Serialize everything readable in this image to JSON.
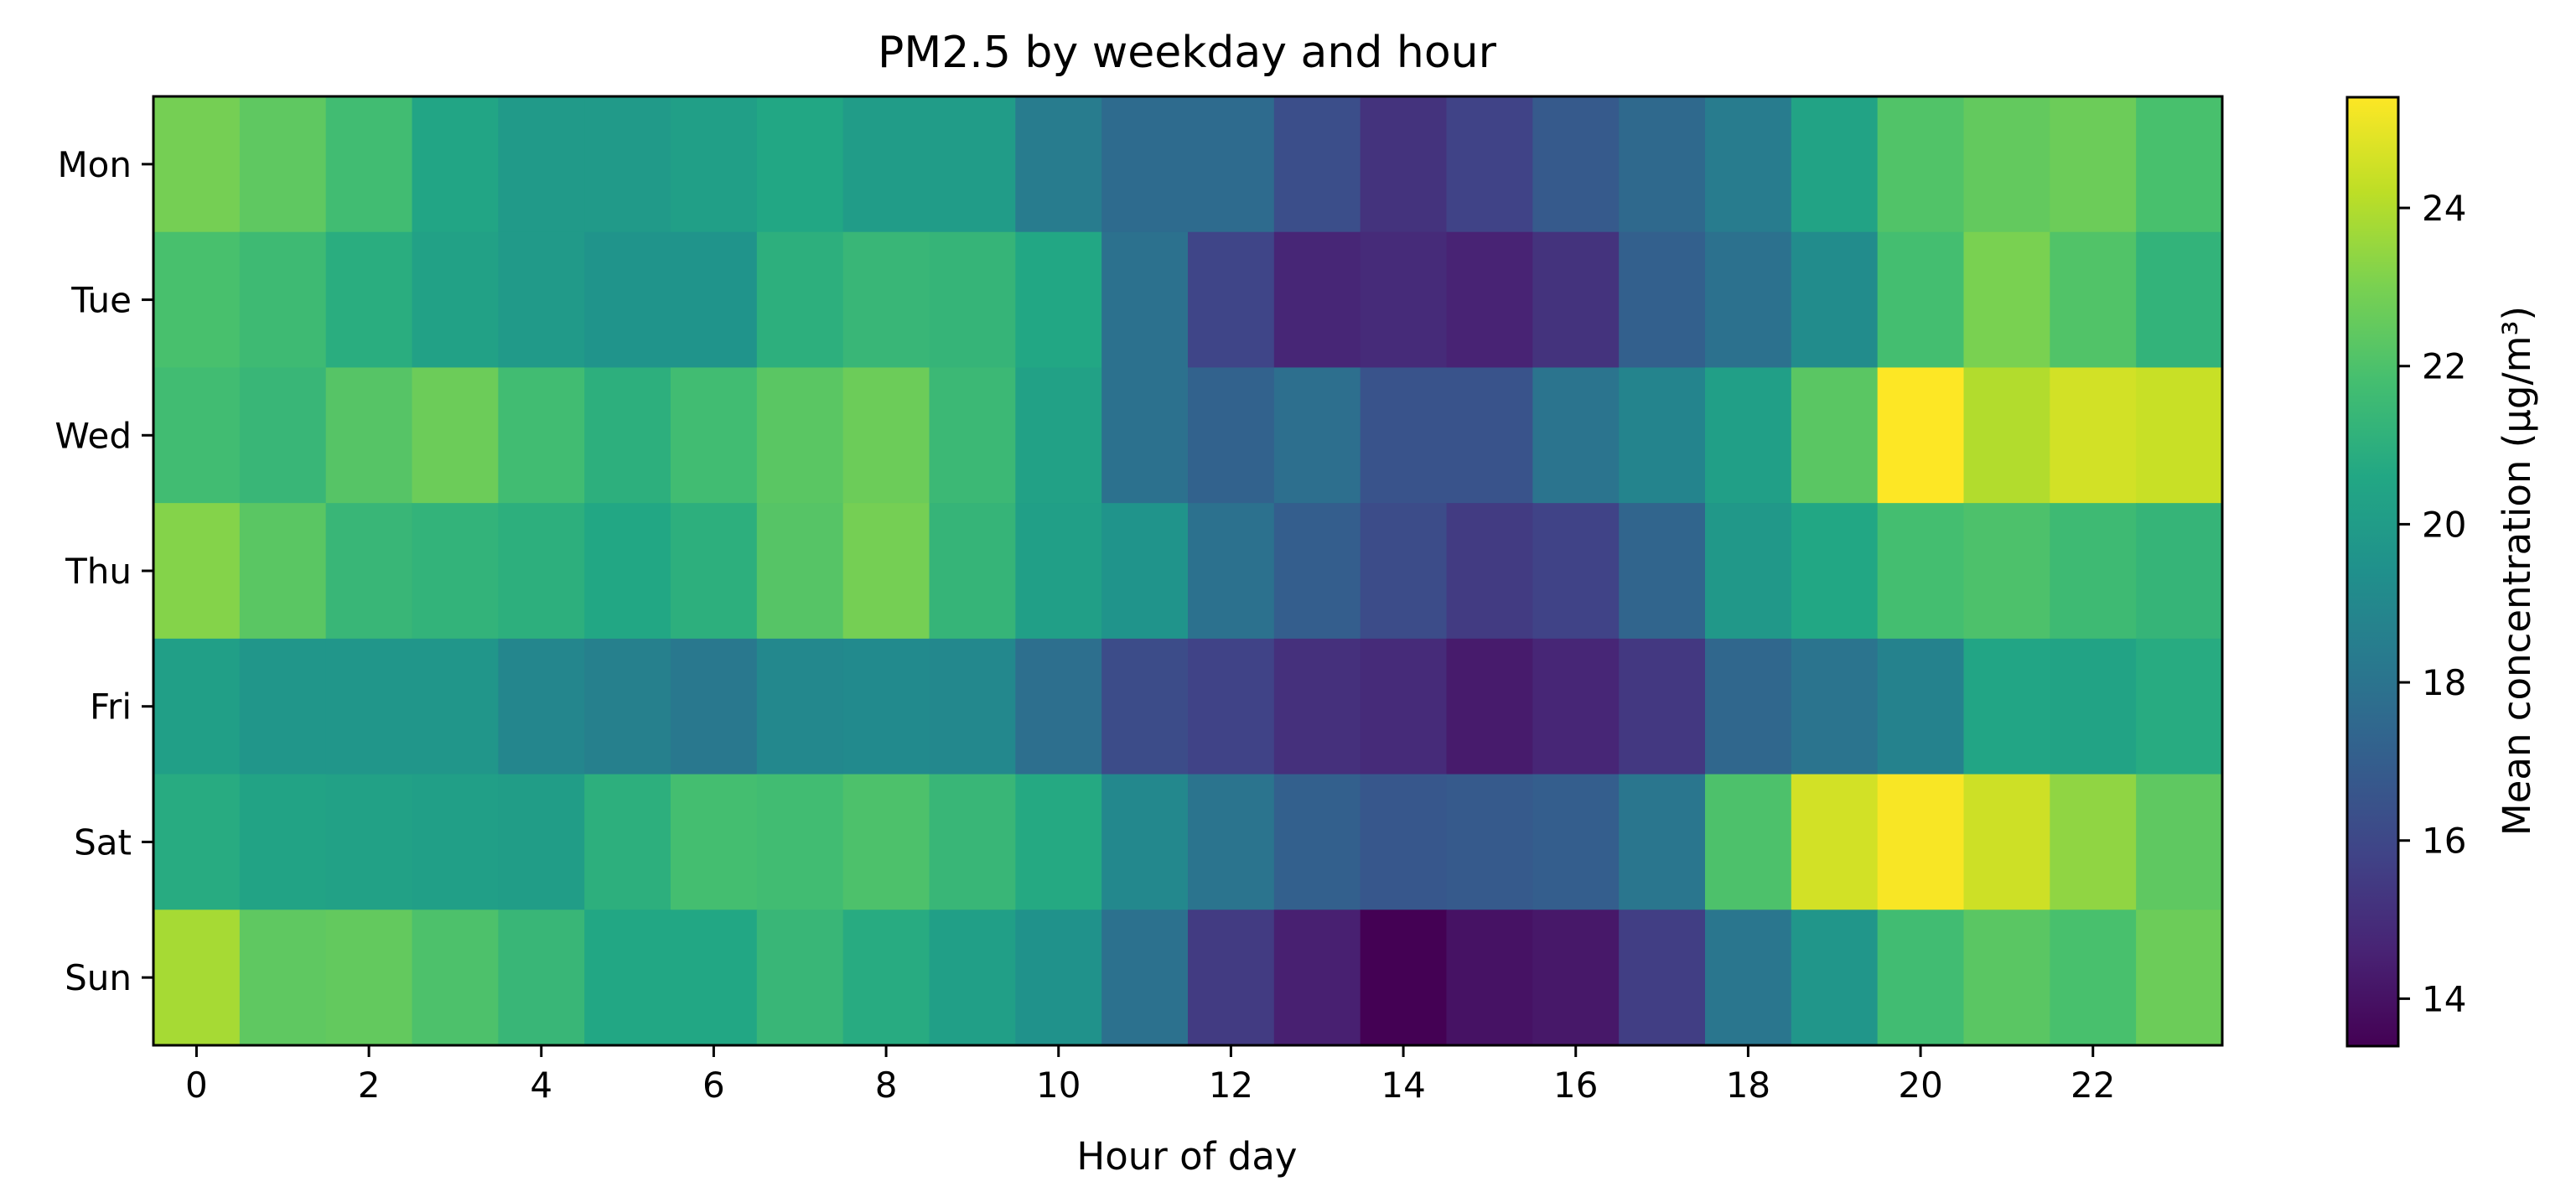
{
  "chart_data": {
    "type": "heatmap",
    "title": "PM2.5 by weekday and hour",
    "xlabel": "Hour of day",
    "ylabel": "",
    "colorbar_label": "Mean concentration (µg/m³)",
    "colormap": "viridis",
    "x": [
      0,
      1,
      2,
      3,
      4,
      5,
      6,
      7,
      8,
      9,
      10,
      11,
      12,
      13,
      14,
      15,
      16,
      17,
      18,
      19,
      20,
      21,
      22,
      23
    ],
    "xticks": [
      0,
      2,
      4,
      6,
      8,
      10,
      12,
      14,
      16,
      18,
      20,
      22
    ],
    "y": [
      "Mon",
      "Tue",
      "Wed",
      "Thu",
      "Fri",
      "Sat",
      "Sun"
    ],
    "vmin": 13.4,
    "vmax": 25.4,
    "colorbar_ticks": [
      14,
      16,
      18,
      20,
      22,
      24
    ],
    "values": [
      [
        22.9,
        22.4,
        21.7,
        20.5,
        19.9,
        19.9,
        20.2,
        20.6,
        20.0,
        20.0,
        18.4,
        17.6,
        17.6,
        16.3,
        15.2,
        15.8,
        16.8,
        17.5,
        18.4,
        20.4,
        22.1,
        22.5,
        22.7,
        21.9
      ],
      [
        21.9,
        21.6,
        20.9,
        20.3,
        19.9,
        19.6,
        19.6,
        21.0,
        21.4,
        21.3,
        20.6,
        17.9,
        15.9,
        14.7,
        14.9,
        14.6,
        15.2,
        17.1,
        17.9,
        19.2,
        21.8,
        23.0,
        22.1,
        21.2
      ],
      [
        21.7,
        21.4,
        22.2,
        22.7,
        21.7,
        21.0,
        21.7,
        22.3,
        22.7,
        21.5,
        20.3,
        17.9,
        17.2,
        17.8,
        16.5,
        16.5,
        18.0,
        18.8,
        20.2,
        22.3,
        25.4,
        24.0,
        24.6,
        24.4
      ],
      [
        23.2,
        22.3,
        21.4,
        21.2,
        21.0,
        20.6,
        21.0,
        22.2,
        22.9,
        21.3,
        20.2,
        19.6,
        17.9,
        17.0,
        16.2,
        15.5,
        15.8,
        17.3,
        19.8,
        20.6,
        21.8,
        22.0,
        21.6,
        21.3
      ],
      [
        20.2,
        19.7,
        19.7,
        19.7,
        18.9,
        18.6,
        18.2,
        19.0,
        19.1,
        19.0,
        17.8,
        16.2,
        15.8,
        15.1,
        14.9,
        14.3,
        14.7,
        15.4,
        17.4,
        18.0,
        18.7,
        20.5,
        20.4,
        20.8
      ],
      [
        20.8,
        20.4,
        20.3,
        20.2,
        20.1,
        21.0,
        21.8,
        21.7,
        22.0,
        21.4,
        20.7,
        19.0,
        18.0,
        17.1,
        16.7,
        16.8,
        17.0,
        18.1,
        22.0,
        24.6,
        25.3,
        24.5,
        23.4,
        22.4
      ],
      [
        23.8,
        22.4,
        22.5,
        22.0,
        21.4,
        20.6,
        20.6,
        21.4,
        20.8,
        20.2,
        19.5,
        17.9,
        15.5,
        14.5,
        13.4,
        14.0,
        14.2,
        15.6,
        18.1,
        19.7,
        21.7,
        22.3,
        21.9,
        22.7
      ]
    ]
  }
}
